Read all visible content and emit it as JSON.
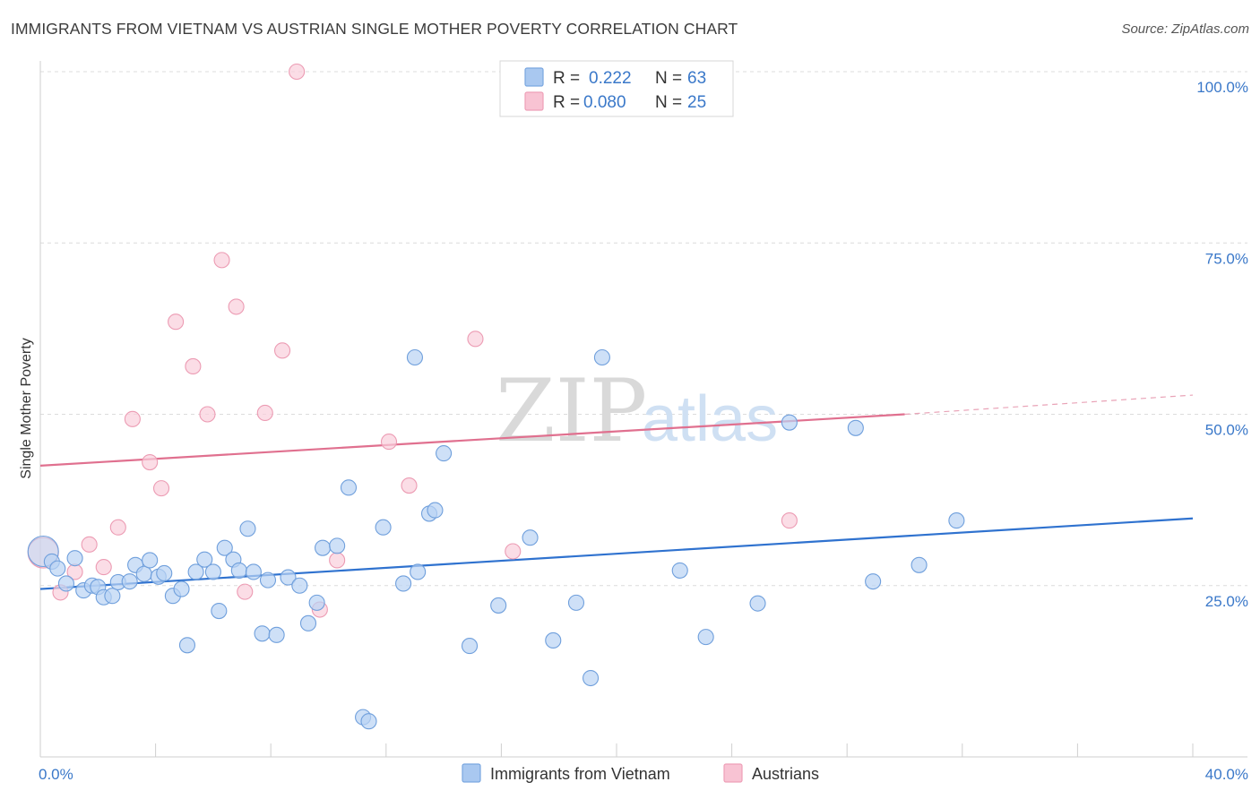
{
  "header": {
    "title": "IMMIGRANTS FROM VIETNAM VS AUSTRIAN SINGLE MOTHER POVERTY CORRELATION CHART",
    "source": "Source: ZipAtlas.com"
  },
  "watermark": {
    "zip": "ZIP",
    "atlas": "atlas"
  },
  "legend": {
    "rows": [
      {
        "r_label": "R =",
        "r_value": "0.222",
        "n_label": "N =",
        "n_value": "63",
        "color": "#a9c8f0",
        "stroke": "#7aa7e0"
      },
      {
        "r_label": "R =",
        "r_value": "0.080",
        "n_label": "N =",
        "n_value": "25",
        "color": "#f8c3d3",
        "stroke": "#ee9fb7"
      }
    ]
  },
  "colors": {
    "blue_fill": "#b9d3f3",
    "blue_stroke": "#6f9fdc",
    "blue_line": "#2f72cf",
    "pink_fill": "#f9cfdc",
    "pink_stroke": "#ec9bb3",
    "pink_line": "#e0708f",
    "grid": "#dcdcdc"
  },
  "chart_data": {
    "type": "scatter",
    "title": "IMMIGRANTS FROM VIETNAM VS AUSTRIAN SINGLE MOTHER POVERTY CORRELATION CHART",
    "xlabel": "",
    "ylabel": "Single Mother Poverty",
    "xlim": [
      0,
      40
    ],
    "ylim": [
      0,
      100
    ],
    "x_tick_labels": [
      "0.0%",
      "40.0%"
    ],
    "y_tick_labels": [
      "25.0%",
      "50.0%",
      "75.0%",
      "100.0%"
    ],
    "y_ticks": [
      25,
      50,
      75,
      100
    ],
    "grid": true,
    "legend_position": "top-center",
    "series": [
      {
        "name": "Immigrants from Vietnam",
        "color": "#b9d3f3",
        "trend": {
          "x": [
            0,
            40
          ],
          "y": [
            24.5,
            34.8
          ]
        },
        "points": [
          {
            "x": 0.1,
            "y": 30.0,
            "big": true
          },
          {
            "x": 0.4,
            "y": 28.5
          },
          {
            "x": 0.6,
            "y": 27.5
          },
          {
            "x": 0.9,
            "y": 25.3
          },
          {
            "x": 1.2,
            "y": 29.0
          },
          {
            "x": 1.5,
            "y": 24.3
          },
          {
            "x": 1.8,
            "y": 25.0
          },
          {
            "x": 2.0,
            "y": 24.8
          },
          {
            "x": 2.2,
            "y": 23.3
          },
          {
            "x": 2.5,
            "y": 23.5
          },
          {
            "x": 2.7,
            "y": 25.5
          },
          {
            "x": 3.1,
            "y": 25.6
          },
          {
            "x": 3.3,
            "y": 28.0
          },
          {
            "x": 3.6,
            "y": 26.7
          },
          {
            "x": 3.8,
            "y": 28.7
          },
          {
            "x": 4.1,
            "y": 26.3
          },
          {
            "x": 4.3,
            "y": 26.8
          },
          {
            "x": 4.6,
            "y": 23.5
          },
          {
            "x": 4.9,
            "y": 24.5
          },
          {
            "x": 5.1,
            "y": 16.3
          },
          {
            "x": 5.4,
            "y": 27.0
          },
          {
            "x": 5.7,
            "y": 28.8
          },
          {
            "x": 6.0,
            "y": 27.0
          },
          {
            "x": 6.2,
            "y": 21.3
          },
          {
            "x": 6.4,
            "y": 30.5
          },
          {
            "x": 6.7,
            "y": 28.8
          },
          {
            "x": 6.9,
            "y": 27.2
          },
          {
            "x": 7.2,
            "y": 33.3
          },
          {
            "x": 7.4,
            "y": 27.0
          },
          {
            "x": 7.7,
            "y": 18.0
          },
          {
            "x": 7.9,
            "y": 25.8
          },
          {
            "x": 8.2,
            "y": 17.8
          },
          {
            "x": 8.6,
            "y": 26.2
          },
          {
            "x": 9.0,
            "y": 25.0
          },
          {
            "x": 9.3,
            "y": 19.5
          },
          {
            "x": 9.6,
            "y": 22.5
          },
          {
            "x": 9.8,
            "y": 30.5
          },
          {
            "x": 10.3,
            "y": 30.8
          },
          {
            "x": 10.7,
            "y": 39.3
          },
          {
            "x": 11.2,
            "y": 5.8
          },
          {
            "x": 11.4,
            "y": 5.2
          },
          {
            "x": 11.9,
            "y": 33.5
          },
          {
            "x": 12.6,
            "y": 25.3
          },
          {
            "x": 13.0,
            "y": 58.3
          },
          {
            "x": 13.5,
            "y": 35.5
          },
          {
            "x": 13.7,
            "y": 36.0
          },
          {
            "x": 14.0,
            "y": 44.3
          },
          {
            "x": 13.1,
            "y": 27.0
          },
          {
            "x": 14.9,
            "y": 16.2
          },
          {
            "x": 15.9,
            "y": 22.1
          },
          {
            "x": 17.0,
            "y": 32.0
          },
          {
            "x": 17.8,
            "y": 17.0
          },
          {
            "x": 18.6,
            "y": 22.5
          },
          {
            "x": 19.1,
            "y": 11.5
          },
          {
            "x": 19.5,
            "y": 58.3
          },
          {
            "x": 22.2,
            "y": 27.2
          },
          {
            "x": 23.1,
            "y": 17.5
          },
          {
            "x": 24.9,
            "y": 22.4
          },
          {
            "x": 26.0,
            "y": 48.8
          },
          {
            "x": 28.3,
            "y": 48.0
          },
          {
            "x": 28.9,
            "y": 25.6
          },
          {
            "x": 30.5,
            "y": 28.0
          },
          {
            "x": 31.8,
            "y": 34.5
          }
        ]
      },
      {
        "name": "Austrians",
        "color": "#f9cfdc",
        "trend": {
          "x": [
            0,
            30
          ],
          "y": [
            42.5,
            50.0
          ],
          "dashed_to": [
            40,
            52.8
          ]
        },
        "points": [
          {
            "x": 0.1,
            "y": 29.8,
            "big": true
          },
          {
            "x": 0.7,
            "y": 24.0
          },
          {
            "x": 1.2,
            "y": 27.0
          },
          {
            "x": 1.7,
            "y": 31.0
          },
          {
            "x": 2.2,
            "y": 27.7
          },
          {
            "x": 2.7,
            "y": 33.5
          },
          {
            "x": 3.2,
            "y": 49.3
          },
          {
            "x": 3.8,
            "y": 43.0
          },
          {
            "x": 4.2,
            "y": 39.2
          },
          {
            "x": 4.7,
            "y": 63.5
          },
          {
            "x": 5.3,
            "y": 57.0
          },
          {
            "x": 5.8,
            "y": 50.0
          },
          {
            "x": 6.3,
            "y": 72.5
          },
          {
            "x": 6.8,
            "y": 65.7
          },
          {
            "x": 7.1,
            "y": 24.1
          },
          {
            "x": 7.8,
            "y": 50.2
          },
          {
            "x": 8.4,
            "y": 59.3
          },
          {
            "x": 8.9,
            "y": 100.0
          },
          {
            "x": 9.7,
            "y": 21.5
          },
          {
            "x": 10.3,
            "y": 28.7
          },
          {
            "x": 12.1,
            "y": 46.0
          },
          {
            "x": 12.8,
            "y": 39.6
          },
          {
            "x": 15.1,
            "y": 61.0
          },
          {
            "x": 16.4,
            "y": 30.0
          },
          {
            "x": 26.0,
            "y": 34.5
          }
        ]
      }
    ]
  }
}
